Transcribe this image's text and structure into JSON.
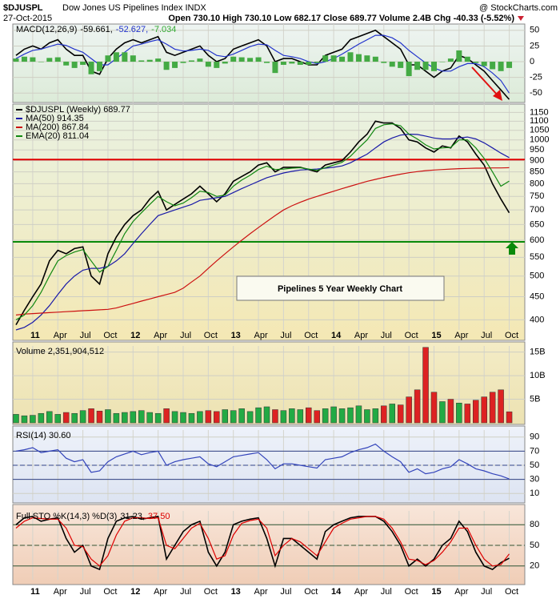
{
  "header": {
    "symbol": "$DJUSPL",
    "name": "Dow Jones US Pipelines Index INDX",
    "date": "27-Oct-2015",
    "source": "@ StockCharts.com",
    "quote": "Open 730.10  High 730.10  Low 682.17  Close 689.77  Volume 2.4B  Chg -40.33 (-5.52%)"
  },
  "chart_data": [
    {
      "type": "line",
      "ylim": [
        -65,
        60
      ],
      "yticks": [
        50,
        25,
        0,
        -25,
        -50
      ],
      "grid": true,
      "legend": [
        {
          "text": "MACD(12,26,9)",
          "color": "#000000"
        },
        {
          "text": "-59.661,",
          "color": "#000000"
        },
        {
          "text": "-52.627,",
          "color": "#2233cc"
        },
        {
          "text": "-7.034",
          "color": "#33aa33"
        }
      ],
      "series": [
        {
          "color": "#000000",
          "values": [
            10,
            20,
            25,
            20,
            30,
            35,
            20,
            10,
            10,
            -15,
            -20,
            5,
            20,
            30,
            35,
            30,
            35,
            40,
            15,
            10,
            15,
            20,
            25,
            10,
            0,
            5,
            20,
            25,
            30,
            35,
            25,
            0,
            5,
            5,
            0,
            -5,
            -5,
            10,
            15,
            20,
            35,
            40,
            45,
            50,
            40,
            30,
            20,
            -5,
            -5,
            -15,
            -25,
            -15,
            -10,
            10,
            5,
            -5,
            -15,
            -30,
            -45,
            -60
          ]
        },
        {
          "color": "#2233cc",
          "values": [
            5,
            12,
            18,
            20,
            24,
            28,
            26,
            20,
            15,
            5,
            -5,
            -5,
            5,
            15,
            25,
            28,
            32,
            35,
            28,
            20,
            17,
            18,
            20,
            18,
            10,
            8,
            12,
            18,
            24,
            28,
            27,
            18,
            10,
            8,
            5,
            0,
            -3,
            0,
            5,
            12,
            20,
            28,
            35,
            42,
            42,
            38,
            30,
            18,
            8,
            -2,
            -10,
            -15,
            -15,
            -8,
            -3,
            -3,
            -8,
            -18,
            -30,
            -50
          ]
        },
        {
          "kind": "bar",
          "color": "#44aa44",
          "values": [
            5,
            8,
            7,
            0,
            6,
            7,
            -6,
            -10,
            -5,
            -20,
            -15,
            10,
            15,
            15,
            10,
            2,
            3,
            5,
            -13,
            -10,
            -2,
            2,
            5,
            -8,
            -10,
            -3,
            8,
            7,
            6,
            7,
            -2,
            -18,
            -5,
            -3,
            -5,
            -5,
            -2,
            10,
            10,
            8,
            15,
            12,
            10,
            8,
            -2,
            -8,
            -10,
            -23,
            -13,
            -13,
            -15,
            0,
            5,
            18,
            8,
            -2,
            -7,
            -12,
            -15,
            -10
          ]
        }
      ]
    },
    {
      "type": "line",
      "log": true,
      "ylim": [
        380,
        1200
      ],
      "grid": true,
      "yticks": [
        400,
        450,
        500,
        550,
        600,
        650,
        700,
        750,
        800,
        850,
        900,
        950,
        1000,
        1050,
        1100,
        1150
      ],
      "categories": [
        null,
        null,
        "11",
        null,
        null,
        "Apr",
        null,
        null,
        "Jul",
        null,
        null,
        "Oct",
        null,
        null,
        "12",
        null,
        null,
        "Apr",
        null,
        null,
        "Jul",
        null,
        null,
        "Oct",
        null,
        null,
        "13",
        null,
        null,
        "Apr",
        null,
        null,
        "Jul",
        null,
        null,
        "Oct",
        null,
        null,
        "14",
        null,
        null,
        "Apr",
        null,
        null,
        "Jul",
        null,
        null,
        "Oct",
        null,
        null,
        "15",
        null,
        null,
        "Apr",
        null,
        null,
        "Jul",
        null,
        null,
        "Oct"
      ],
      "annotation": "Pipelines 5 Year Weekly Chart",
      "hlines": [
        {
          "value": 905,
          "color": "#e00000"
        },
        {
          "value": 595,
          "color": "#0a8a0a"
        }
      ],
      "series": [
        {
          "name": "$DJUSPL (Weekly) 689.77",
          "color": "#000000",
          "values": [
            390,
            420,
            450,
            480,
            540,
            570,
            560,
            575,
            580,
            500,
            480,
            560,
            610,
            650,
            680,
            700,
            740,
            770,
            700,
            720,
            740,
            760,
            790,
            760,
            730,
            760,
            810,
            830,
            850,
            880,
            890,
            850,
            870,
            870,
            870,
            860,
            850,
            880,
            890,
            900,
            940,
            990,
            1030,
            1100,
            1090,
            1090,
            1060,
            1000,
            990,
            960,
            940,
            970,
            960,
            1020,
            990,
            930,
            880,
            800,
            740,
            690
          ]
        },
        {
          "name": "MA(50) 914.35",
          "color": "#1a1aa8",
          "values": [
            380,
            385,
            395,
            410,
            430,
            455,
            480,
            500,
            515,
            520,
            520,
            525,
            540,
            560,
            590,
            620,
            650,
            680,
            690,
            700,
            710,
            720,
            735,
            740,
            745,
            750,
            765,
            780,
            795,
            810,
            825,
            835,
            845,
            852,
            858,
            860,
            862,
            866,
            870,
            876,
            890,
            910,
            930,
            960,
            990,
            1010,
            1025,
            1030,
            1028,
            1020,
            1010,
            1005,
            1005,
            1010,
            1015,
            1005,
            985,
            960,
            935,
            914
          ]
        },
        {
          "name": "MA(200) 867.84",
          "color": "#cc1111",
          "values": [
            410,
            412,
            413,
            414,
            415,
            416,
            417,
            418,
            419,
            420,
            421,
            422,
            425,
            430,
            435,
            440,
            445,
            450,
            455,
            460,
            470,
            485,
            500,
            520,
            540,
            560,
            580,
            600,
            620,
            640,
            660,
            680,
            700,
            715,
            728,
            740,
            750,
            760,
            770,
            780,
            790,
            800,
            810,
            818,
            826,
            833,
            840,
            846,
            851,
            855,
            858,
            860,
            862,
            864,
            865,
            866,
            866,
            867,
            867,
            868
          ]
        },
        {
          "name": "EMA(20) 811.04",
          "color": "#118811",
          "values": [
            400,
            410,
            430,
            460,
            500,
            540,
            555,
            565,
            572,
            540,
            510,
            525,
            570,
            620,
            660,
            690,
            720,
            750,
            730,
            715,
            725,
            745,
            770,
            765,
            750,
            755,
            790,
            815,
            835,
            860,
            875,
            860,
            862,
            866,
            868,
            862,
            856,
            868,
            880,
            892,
            920,
            960,
            1000,
            1060,
            1080,
            1085,
            1075,
            1030,
            1005,
            975,
            955,
            960,
            962,
            1000,
            1000,
            960,
            910,
            850,
            790,
            811
          ]
        }
      ]
    },
    {
      "type": "bar",
      "ylim": [
        0,
        16300000000.0
      ],
      "grid": true,
      "yticks": [
        {
          "value": 5000000000.0,
          "label": "5B"
        },
        {
          "value": 10000000000.0,
          "label": "10B"
        },
        {
          "value": 15000000000.0,
          "label": "15B"
        }
      ],
      "legend": [
        {
          "text": "Volume 2,351,904,512",
          "color": "#000000"
        }
      ],
      "up_color": "#22aa44",
      "down_color": "#dd2222",
      "series": [
        {
          "values": [
            1800000000.0,
            1500000000.0,
            1600000000.0,
            2000000000.0,
            2400000000.0,
            1800000000.0,
            2200000000.0,
            2000000000.0,
            2600000000.0,
            3000000000.0,
            2500000000.0,
            2800000000.0,
            2000000000.0,
            2200000000.0,
            2400000000.0,
            2600000000.0,
            2200000000.0,
            2000000000.0,
            3000000000.0,
            2400000000.0,
            2200000000.0,
            2000000000.0,
            2400000000.0,
            2600000000.0,
            2400000000.0,
            2800000000.0,
            2600000000.0,
            3000000000.0,
            2400000000.0,
            3200000000.0,
            3400000000.0,
            2800000000.0,
            2600000000.0,
            3000000000.0,
            2800000000.0,
            3200000000.0,
            2600000000.0,
            3000000000.0,
            3400000000.0,
            3000000000.0,
            3200000000.0,
            3600000000.0,
            2800000000.0,
            3000000000.0,
            3600000000.0,
            4000000000.0,
            3800000000.0,
            5500000000.0,
            7000000000.0,
            16000000000.0,
            6500000000.0,
            4500000000.0,
            5000000000.0,
            4200000000.0,
            4000000000.0,
            4800000000.0,
            5500000000.0,
            6500000000.0,
            7000000000.0,
            2350000000.0
          ]
        }
      ]
    },
    {
      "type": "line",
      "ylim": [
        0,
        100
      ],
      "yticks": [
        10,
        30,
        50,
        70,
        90
      ],
      "grid": true,
      "legend": [
        {
          "text": "RSI(14) 30.60",
          "color": "#000000"
        }
      ],
      "hlines": [
        {
          "value": 70,
          "color": "#334488"
        },
        {
          "value": 50,
          "color": "#334488",
          "dash": true
        },
        {
          "value": 30,
          "color": "#334488"
        }
      ],
      "series": [
        {
          "color": "#3344bb",
          "values": [
            70,
            72,
            75,
            68,
            70,
            72,
            60,
            55,
            58,
            40,
            42,
            55,
            62,
            66,
            70,
            65,
            68,
            70,
            50,
            55,
            58,
            60,
            62,
            52,
            48,
            55,
            62,
            64,
            66,
            68,
            58,
            45,
            52,
            52,
            50,
            48,
            46,
            58,
            60,
            62,
            68,
            72,
            75,
            80,
            70,
            62,
            55,
            40,
            45,
            38,
            40,
            45,
            48,
            58,
            52,
            45,
            42,
            38,
            35,
            30.6
          ]
        }
      ]
    },
    {
      "type": "line",
      "ylim": [
        0,
        100
      ],
      "yticks": [
        20,
        50,
        80
      ],
      "grid": true,
      "legend": [
        {
          "text": "Full STO %K(14,3) %D(3)",
          "color": "#000000"
        },
        {
          "text": "31.23,",
          "color": "#000000"
        },
        {
          "text": "37.50",
          "color": "#dd0000"
        }
      ],
      "hlines": [
        {
          "value": 80,
          "color": "#335533"
        },
        {
          "value": 50,
          "color": "#335533",
          "dash": true
        },
        {
          "value": 20,
          "color": "#335533"
        }
      ],
      "series": [
        {
          "color": "#000000",
          "values": [
            80,
            90,
            92,
            85,
            88,
            90,
            60,
            40,
            50,
            20,
            15,
            60,
            85,
            90,
            92,
            88,
            90,
            92,
            30,
            50,
            70,
            80,
            85,
            40,
            20,
            40,
            80,
            85,
            88,
            90,
            60,
            20,
            60,
            60,
            50,
            40,
            30,
            70,
            80,
            85,
            90,
            92,
            92,
            92,
            85,
            70,
            50,
            20,
            30,
            20,
            30,
            50,
            60,
            85,
            70,
            40,
            20,
            15,
            25,
            31.23
          ]
        },
        {
          "color": "#dd0000",
          "values": [
            75,
            85,
            90,
            89,
            88,
            88,
            75,
            50,
            48,
            30,
            20,
            35,
            65,
            85,
            90,
            90,
            89,
            90,
            50,
            45,
            60,
            75,
            82,
            60,
            30,
            35,
            65,
            82,
            86,
            88,
            75,
            35,
            50,
            60,
            55,
            45,
            35,
            55,
            75,
            82,
            88,
            90,
            92,
            92,
            88,
            75,
            55,
            30,
            28,
            22,
            28,
            40,
            55,
            75,
            75,
            50,
            30,
            20,
            22,
            37.5
          ]
        }
      ]
    }
  ]
}
